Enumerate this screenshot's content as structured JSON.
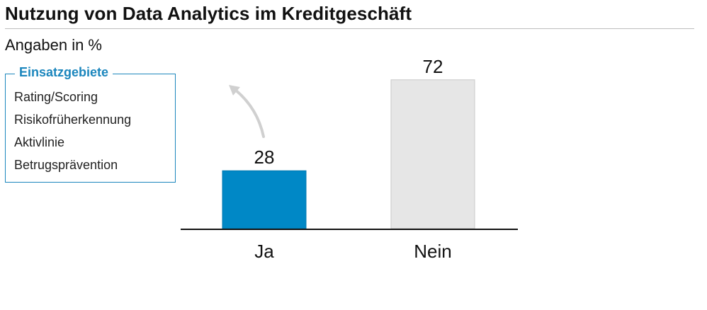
{
  "title": "Nutzung von Data Analytics im Kreditgeschäft",
  "subtitle": "Angaben in %",
  "legend": {
    "title": "Einsatzgebiete",
    "items": [
      "Rating/Scoring",
      "Risikofrüherkennung",
      "Aktivlinie",
      "Betrugsprävention"
    ],
    "accent_color": "#1b86bd"
  },
  "chart_data": {
    "type": "bar",
    "categories": [
      "Ja",
      "Nein"
    ],
    "values": [
      28,
      72
    ],
    "colors": [
      "#0088c6",
      "#e6e6e6"
    ],
    "ylim": [
      0,
      100
    ],
    "data_labels": true,
    "grid": false,
    "legend_placement": "left"
  }
}
